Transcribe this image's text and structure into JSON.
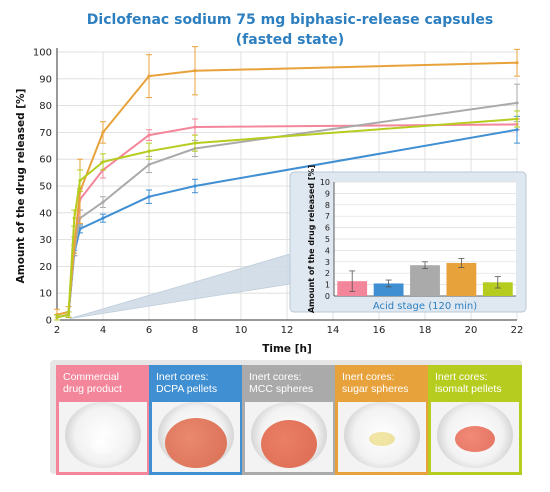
{
  "chart_data": {
    "type": "line",
    "title": "Diclofenac sodium 75 mg biphasic-release capsules",
    "subtitle": "(fasted state)",
    "xlabel": "Time [h]",
    "ylabel": "Amount of the drug released [%]",
    "xlim": [
      2,
      22
    ],
    "ylim": [
      0,
      100
    ],
    "xticks": [
      2,
      4,
      6,
      8,
      10,
      12,
      14,
      16,
      18,
      20,
      22
    ],
    "yticks": [
      0,
      10,
      20,
      30,
      40,
      50,
      60,
      70,
      80,
      90,
      100
    ],
    "grid": true,
    "series": [
      {
        "color": "#f4869b",
        "x": [
          2,
          2.5,
          2.75,
          3,
          4,
          6,
          8,
          22
        ],
        "y": [
          1,
          2,
          26,
          45,
          56,
          69,
          72,
          73
        ],
        "err": [
          1,
          1,
          2,
          4,
          3,
          2,
          3,
          2
        ]
      },
      {
        "color": "#3f8fd2",
        "x": [
          2,
          2.5,
          2.75,
          3,
          4,
          6,
          8,
          22
        ],
        "y": [
          1,
          2,
          25,
          34,
          38,
          46,
          50,
          71
        ],
        "err": [
          1,
          1,
          1,
          1.5,
          1.5,
          2.5,
          2.5,
          5
        ]
      },
      {
        "color": "#aaaaaa",
        "x": [
          2,
          2.5,
          2.75,
          3,
          4,
          6,
          8,
          22
        ],
        "y": [
          1,
          2,
          26,
          38,
          44,
          58,
          64,
          81
        ],
        "err": [
          1,
          1,
          2,
          3,
          2,
          3,
          3,
          7
        ]
      },
      {
        "color": "#e8a23c",
        "x": [
          2,
          2.5,
          2.75,
          3,
          4,
          6,
          8,
          22
        ],
        "y": [
          2,
          3,
          28,
          48,
          70,
          91,
          93,
          96
        ],
        "err": [
          2,
          2,
          3,
          12,
          4,
          8,
          9,
          5
        ]
      },
      {
        "color": "#b6cc1f",
        "x": [
          2,
          2.5,
          2.75,
          3,
          4,
          6,
          8,
          22
        ],
        "y": [
          1,
          2,
          38,
          52,
          59,
          63,
          66,
          75
        ],
        "err": [
          1,
          1,
          3,
          4,
          3,
          3,
          3,
          3
        ]
      }
    ],
    "inset": {
      "type": "bar",
      "ylabel": "Amount of the drug released [%]",
      "xlabel": "Acid stage (120 min)",
      "ylim": [
        0,
        10
      ],
      "yticks": [
        0,
        1,
        2,
        3,
        4,
        5,
        6,
        7,
        8,
        9,
        10
      ],
      "values": [
        1.3,
        1.1,
        2.7,
        2.9,
        1.2
      ],
      "err": [
        0.9,
        0.3,
        0.3,
        0.4,
        0.5
      ],
      "colors": [
        "#f4869b",
        "#3f8fd2",
        "#aaaaaa",
        "#e8a23c",
        "#b6cc1f"
      ]
    }
  },
  "panels": [
    {
      "label": "Commercial drug product",
      "line1": "Commercial",
      "line2": "drug product",
      "color": "#f4869b"
    },
    {
      "label": "Inert cores: DCPA pellets",
      "line1": "Inert cores:",
      "line2": "DCPA pellets",
      "color": "#3f8fd2"
    },
    {
      "label": "Inert cores: MCC spheres",
      "line1": "Inert cores:",
      "line2": "MCC spheres",
      "color": "#aaaaaa"
    },
    {
      "label": "Inert cores: sugar spheres",
      "line1": "Inert cores:",
      "line2": "sugar spheres",
      "color": "#e8a23c"
    },
    {
      "label": "Inert cores: isomalt pellets",
      "line1": "Inert cores:",
      "line2": "isomalt pellets",
      "color": "#b6cc1f"
    }
  ]
}
